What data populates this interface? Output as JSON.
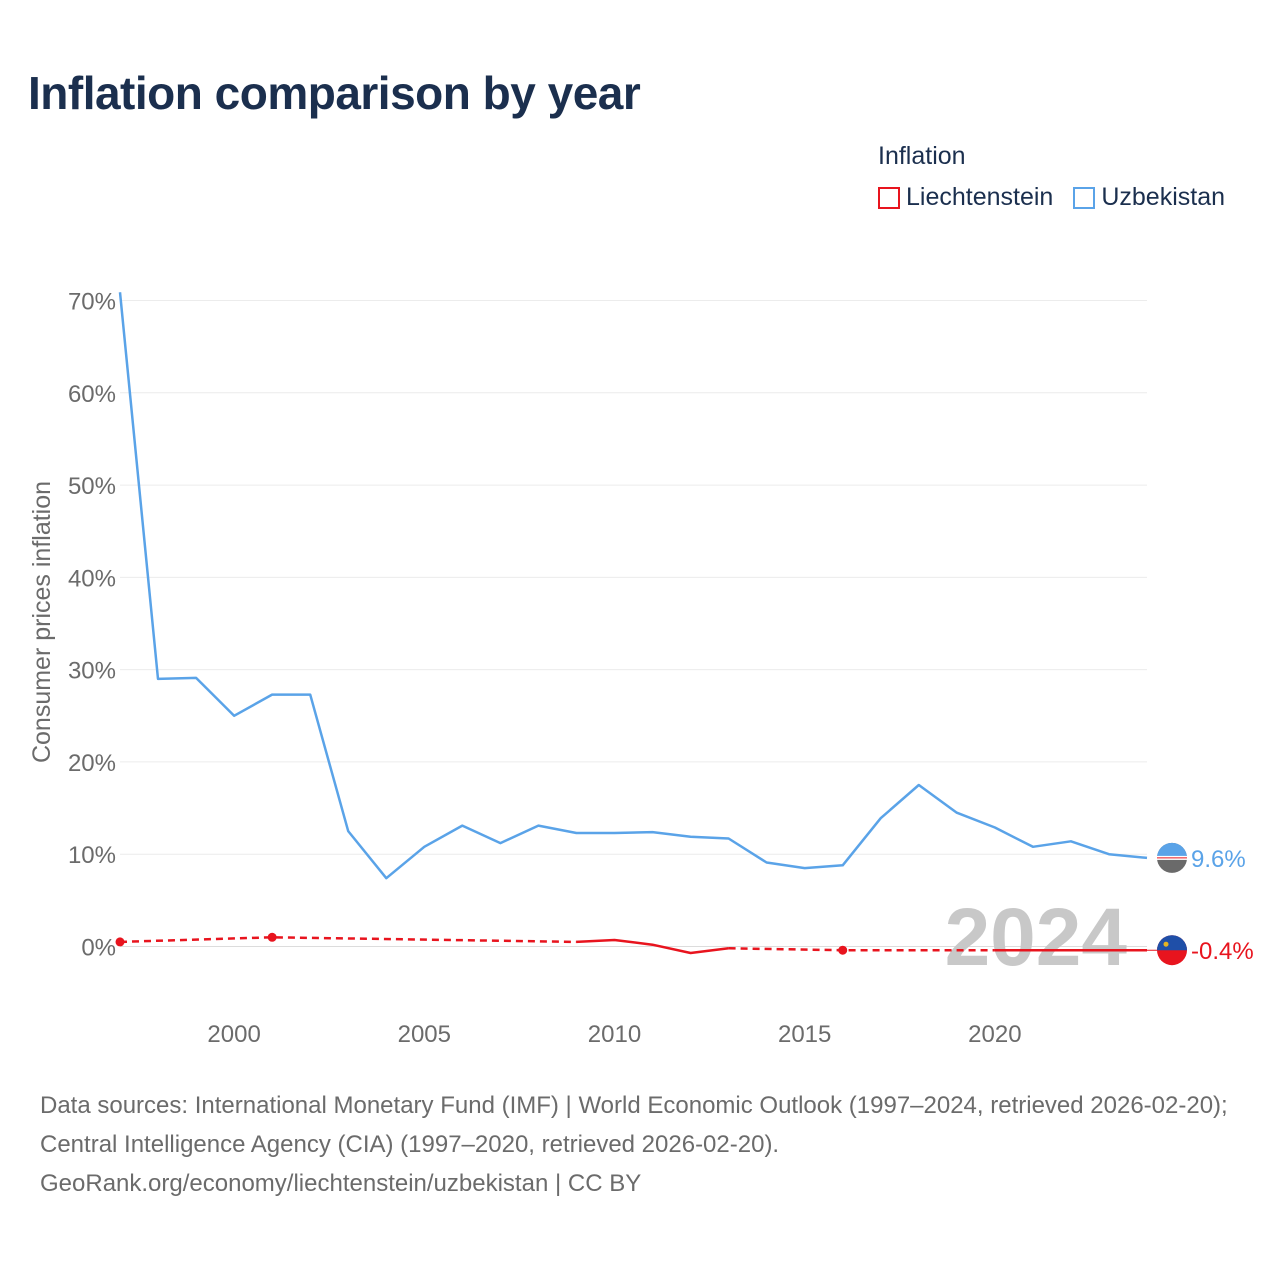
{
  "title": "Inflation comparison by year",
  "legend": {
    "title": "Inflation",
    "items": [
      {
        "label": "Liechtenstein",
        "color": "#e8141e"
      },
      {
        "label": "Uzbekistan",
        "color": "#5aa3e8"
      }
    ]
  },
  "chart_data": {
    "type": "line",
    "title": "Inflation comparison by year",
    "xlabel": "",
    "ylabel": "Consumer prices inflation",
    "xlim": [
      1997,
      2024
    ],
    "ylim": [
      -7,
      70
    ],
    "x_ticks": [
      2000,
      2005,
      2010,
      2015,
      2020
    ],
    "y_ticks": [
      0,
      10,
      20,
      30,
      40,
      50,
      60,
      70
    ],
    "y_tick_labels": [
      "0%",
      "10%",
      "20%",
      "30%",
      "40%",
      "50%",
      "60%",
      "70%"
    ],
    "grid": true,
    "legend_position": "top-right",
    "year_watermark": "2024",
    "series": [
      {
        "name": "Uzbekistan",
        "color": "#5aa3e8",
        "end_label": "9.6%",
        "x": [
          1997,
          1998,
          1999,
          2000,
          2001,
          2002,
          2003,
          2004,
          2005,
          2006,
          2007,
          2008,
          2009,
          2010,
          2011,
          2012,
          2013,
          2014,
          2015,
          2016,
          2017,
          2018,
          2019,
          2020,
          2021,
          2022,
          2023,
          2024
        ],
        "y": [
          70.9,
          29.0,
          29.1,
          25.0,
          27.3,
          27.3,
          12.5,
          7.4,
          10.8,
          13.1,
          11.2,
          13.1,
          12.3,
          12.3,
          12.4,
          11.9,
          11.7,
          9.1,
          8.5,
          8.8,
          13.9,
          17.5,
          14.5,
          12.9,
          10.8,
          11.4,
          10.0,
          9.6
        ]
      },
      {
        "name": "Liechtenstein",
        "color": "#e8141e",
        "end_label": "-0.4%",
        "x": [
          1997,
          2001,
          2009,
          2010,
          2011,
          2012,
          2013,
          2016,
          2020,
          2024
        ],
        "y": [
          0.5,
          1.0,
          0.5,
          0.7,
          0.2,
          -0.7,
          -0.2,
          -0.4,
          -0.4,
          -0.4
        ],
        "segments": [
          {
            "from": 1997,
            "to": 2009,
            "style": "dashed"
          },
          {
            "from": 2009,
            "to": 2013,
            "style": "solid"
          },
          {
            "from": 2013,
            "to": 2020,
            "style": "dashed"
          },
          {
            "from": 2020,
            "to": 2024,
            "style": "solid"
          }
        ],
        "markers": [
          1997,
          2001,
          2016
        ]
      }
    ]
  },
  "footer": {
    "sources": "Data sources: International Monetary Fund (IMF) | World Economic Outlook (1997–2024, retrieved 2026-02-20); Central Intelligence Agency (CIA) (1997–2020, retrieved 2026-02-20).",
    "attribution": "GeoRank.org/economy/liechtenstein/uzbekistan | CC BY"
  }
}
